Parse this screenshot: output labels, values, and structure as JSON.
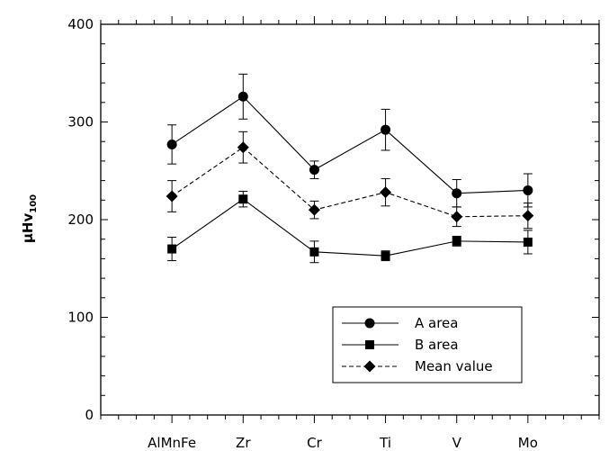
{
  "chart_data": {
    "type": "line",
    "title": "",
    "xlabel": "",
    "ylabel": "μHv",
    "ylabel_subscript": "100",
    "categories": [
      "AlMnFe",
      "Zr",
      "Cr",
      "Ti",
      "V",
      "Mo"
    ],
    "ylim": [
      0,
      400
    ],
    "yticks": [
      0,
      100,
      200,
      300,
      400
    ],
    "grid": false,
    "legend_position": "bottom-right",
    "series": [
      {
        "name": "A area",
        "marker": "circle",
        "line_style": "solid",
        "values": [
          277,
          326,
          251,
          292,
          227,
          230
        ],
        "error": [
          20,
          23,
          9,
          21,
          14,
          17
        ]
      },
      {
        "name": "B area",
        "marker": "square",
        "line_style": "solid",
        "values": [
          170,
          221,
          167,
          163,
          178,
          177
        ],
        "error": [
          12,
          8,
          11,
          5,
          5,
          12
        ]
      },
      {
        "name": "Mean value",
        "marker": "diamond",
        "line_style": "dashed",
        "values": [
          224,
          274,
          210,
          228,
          203,
          204
        ],
        "error": [
          16,
          16,
          9,
          14,
          10,
          13
        ]
      }
    ]
  }
}
